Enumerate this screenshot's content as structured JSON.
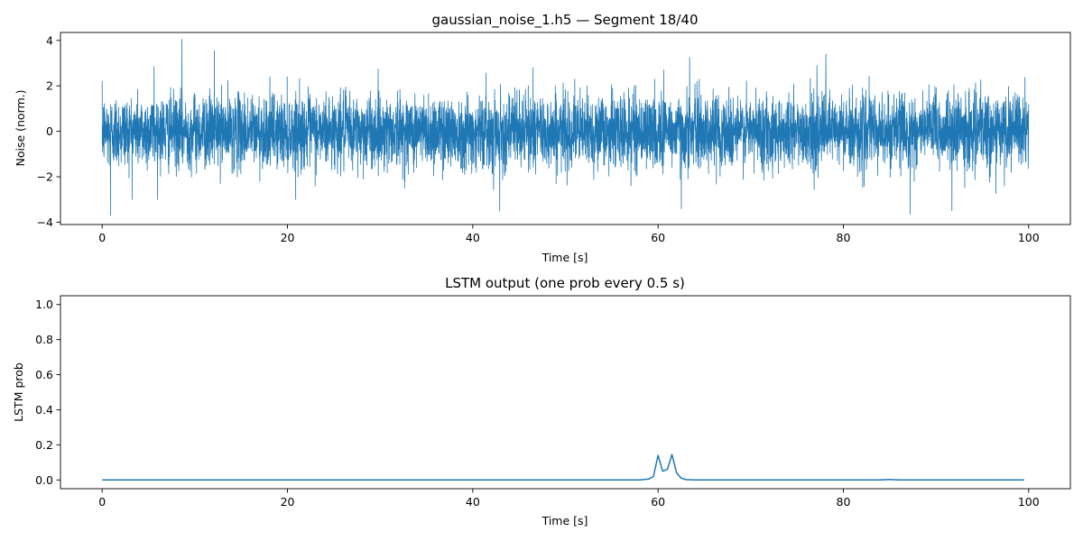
{
  "chart_data": [
    {
      "type": "line",
      "title": "gaussian_noise_1.h5 — Segment 18/40",
      "xlabel": "Time [s]",
      "ylabel": "Noise (norm.)",
      "xlim": [
        -4.5,
        104.5
      ],
      "ylim": [
        -4.1,
        4.35
      ],
      "xticks": [
        0,
        20,
        40,
        60,
        80,
        100
      ],
      "yticks": [
        -4,
        -2,
        0,
        2,
        4
      ],
      "xtick_labels": [
        "0",
        "20",
        "40",
        "60",
        "80",
        "100"
      ],
      "ytick_labels": [
        "−4",
        "−2",
        "0",
        "2",
        "4"
      ],
      "grid": false,
      "color": "#1f77b4",
      "signal": {
        "description_type": "gaussian white noise, std ~0.8",
        "x_range": [
          0,
          100
        ],
        "spikes": [
          {
            "x": 0.9,
            "y": -3.7
          },
          {
            "x": 8.6,
            "y": 4.05
          },
          {
            "x": 12.1,
            "y": 3.55
          },
          {
            "x": 42.9,
            "y": -3.5
          },
          {
            "x": 78.1,
            "y": 3.4
          },
          {
            "x": 87.2,
            "y": -3.65
          },
          {
            "x": 91.7,
            "y": -3.5
          },
          {
            "x": 62.5,
            "y": -3.4
          },
          {
            "x": 63.4,
            "y": 3.25
          },
          {
            "x": 46.5,
            "y": 2.8
          },
          {
            "x": 5.6,
            "y": 2.85
          },
          {
            "x": 60.6,
            "y": 2.7
          }
        ]
      }
    },
    {
      "type": "line",
      "title": "LSTM output (one prob every 0.5 s)",
      "xlabel": "Time [s]",
      "ylabel": "LSTM prob",
      "xlim": [
        -4.5,
        104.5
      ],
      "ylim": [
        -0.05,
        1.05
      ],
      "xticks": [
        0,
        20,
        40,
        60,
        80,
        100
      ],
      "yticks": [
        0.0,
        0.2,
        0.4,
        0.6,
        0.8,
        1.0
      ],
      "xtick_labels": [
        "0",
        "20",
        "40",
        "60",
        "80",
        "100"
      ],
      "ytick_labels": [
        "0.0",
        "0.2",
        "0.4",
        "0.6",
        "0.8",
        "1.0"
      ],
      "grid": false,
      "color": "#1f77b4",
      "series": [
        {
          "x": [
            0,
            10,
            20,
            30,
            40,
            50,
            58,
            59,
            59.5,
            60,
            60.5,
            61,
            61.5,
            62,
            62.5,
            63,
            64,
            70,
            80,
            84,
            85,
            86,
            90,
            99.5
          ],
          "y": [
            0,
            0,
            0,
            0,
            0,
            0,
            0.0,
            0.005,
            0.02,
            0.14,
            0.05,
            0.06,
            0.145,
            0.04,
            0.01,
            0.002,
            0,
            0,
            0,
            0,
            0.003,
            0,
            0,
            0
          ]
        }
      ]
    }
  ]
}
